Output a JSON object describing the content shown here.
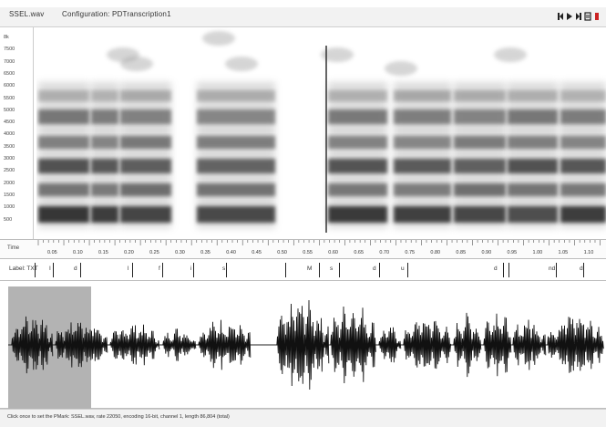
{
  "menubar": {
    "file_label": "SSEL.wav",
    "config_label": "Configuration: PDTranscription1",
    "transport": [
      {
        "name": "rewind-icon"
      },
      {
        "name": "play-icon"
      },
      {
        "name": "play-selection-icon"
      },
      {
        "name": "edit-icon"
      },
      {
        "name": "record-icon"
      }
    ]
  },
  "spectrogram": {
    "freq_labels": [
      "8k",
      "7500",
      "7000",
      "6500",
      "6000",
      "5500",
      "5000",
      "4500",
      "4000",
      "3500",
      "3000",
      "2500",
      "2000",
      "1500",
      "1000",
      "500"
    ]
  },
  "time_ruler": {
    "label": "Time",
    "ticks": [
      "0.05",
      "0.10",
      "0.15",
      "0.20",
      "0.25",
      "0.30",
      "0.35",
      "0.40",
      "0.45",
      "0.50",
      "0.55",
      "0.60",
      "0.65",
      "0.70",
      "0.75",
      "0.80",
      "0.85",
      "0.90",
      "0.95",
      "1.00",
      "1.05",
      "1.10"
    ]
  },
  "label_tier": {
    "name": "Label: TXT",
    "segments": [
      "I",
      "d",
      "l",
      "f",
      "i",
      "s",
      "M",
      "s",
      "d",
      "u",
      "d",
      "nd",
      "d"
    ]
  },
  "statusbar": {
    "text": "Click once to set the PMark: SSEL.wav, rate 22050, encoding 16-bit, channel 1, length 86,804 (total)"
  }
}
